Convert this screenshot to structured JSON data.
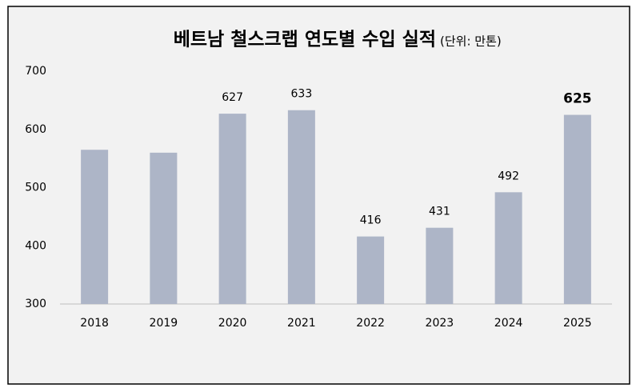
{
  "chart_data": {
    "type": "bar",
    "title": "베트남 철스크랩 연도별 수입 실적",
    "subtitle": "(단위: 만톤)",
    "categories": [
      "2018",
      "2019",
      "2020",
      "2021",
      "2022",
      "2023",
      "2024",
      "2025"
    ],
    "values": [
      565,
      560,
      627,
      633,
      416,
      431,
      492,
      625
    ],
    "value_labels": [
      null,
      null,
      "627",
      "633",
      "416",
      "431",
      "492",
      "625"
    ],
    "color": "#adb5c7",
    "ylim": [
      300,
      700
    ],
    "yticks": [
      300,
      400,
      500,
      600,
      700
    ],
    "grid": false
  }
}
